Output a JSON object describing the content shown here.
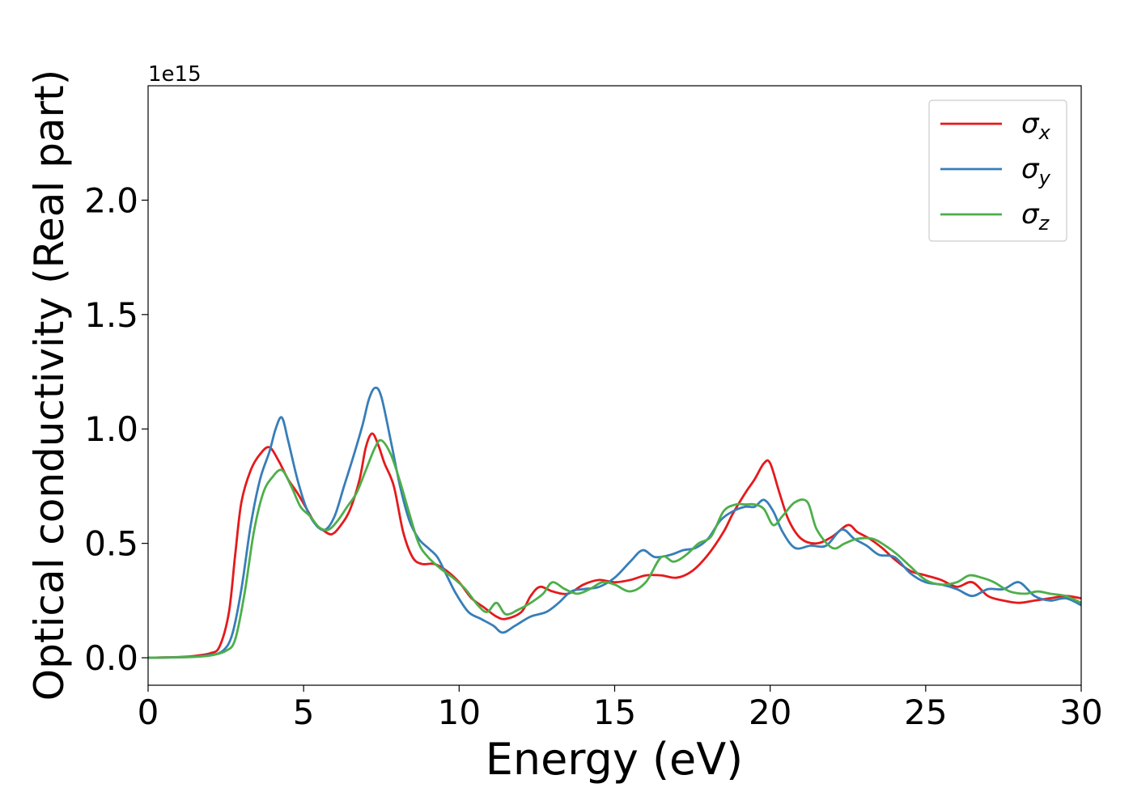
{
  "chart_data": {
    "type": "line",
    "xlabel": "Energy (eV)",
    "ylabel": "Optical conductivity (Real part)",
    "offset_label": "1e15",
    "xlim": [
      0,
      30
    ],
    "ylim": [
      -0.12,
      2.5
    ],
    "xticks": [
      0,
      5,
      10,
      15,
      20,
      25,
      30
    ],
    "yticks": [
      0.0,
      0.5,
      1.0,
      1.5,
      2.0
    ],
    "xtick_labels": [
      "0",
      "5",
      "10",
      "15",
      "20",
      "25",
      "30"
    ],
    "ytick_labels": [
      "0.0",
      "0.5",
      "1.0",
      "1.5",
      "2.0"
    ],
    "grid": false,
    "legend_position": "top-right",
    "series": [
      {
        "name": "σx",
        "color": "#e41a1c",
        "points": [
          [
            0,
            0
          ],
          [
            1,
            0.003
          ],
          [
            1.5,
            0.008
          ],
          [
            2,
            0.02
          ],
          [
            2.3,
            0.05
          ],
          [
            2.6,
            0.2
          ],
          [
            2.8,
            0.45
          ],
          [
            3,
            0.68
          ],
          [
            3.3,
            0.82
          ],
          [
            3.6,
            0.89
          ],
          [
            3.9,
            0.92
          ],
          [
            4.2,
            0.86
          ],
          [
            4.5,
            0.78
          ],
          [
            4.8,
            0.72
          ],
          [
            5.1,
            0.65
          ],
          [
            5.4,
            0.58
          ],
          [
            5.6,
            0.56
          ],
          [
            5.9,
            0.54
          ],
          [
            6.2,
            0.58
          ],
          [
            6.5,
            0.65
          ],
          [
            6.8,
            0.78
          ],
          [
            7.0,
            0.92
          ],
          [
            7.2,
            0.98
          ],
          [
            7.4,
            0.93
          ],
          [
            7.6,
            0.85
          ],
          [
            7.9,
            0.75
          ],
          [
            8.2,
            0.55
          ],
          [
            8.5,
            0.44
          ],
          [
            8.8,
            0.41
          ],
          [
            9.2,
            0.41
          ],
          [
            9.6,
            0.38
          ],
          [
            10,
            0.33
          ],
          [
            10.4,
            0.26
          ],
          [
            10.8,
            0.22
          ],
          [
            11.2,
            0.18
          ],
          [
            11.5,
            0.17
          ],
          [
            12,
            0.2
          ],
          [
            12.3,
            0.27
          ],
          [
            12.6,
            0.31
          ],
          [
            13,
            0.29
          ],
          [
            13.5,
            0.28
          ],
          [
            14,
            0.32
          ],
          [
            14.5,
            0.34
          ],
          [
            15,
            0.33
          ],
          [
            15.5,
            0.34
          ],
          [
            16,
            0.36
          ],
          [
            16.5,
            0.36
          ],
          [
            17,
            0.35
          ],
          [
            17.5,
            0.38
          ],
          [
            18,
            0.45
          ],
          [
            18.5,
            0.55
          ],
          [
            18.8,
            0.63
          ],
          [
            19.2,
            0.72
          ],
          [
            19.5,
            0.78
          ],
          [
            19.8,
            0.85
          ],
          [
            20,
            0.85
          ],
          [
            20.3,
            0.72
          ],
          [
            20.6,
            0.6
          ],
          [
            21,
            0.52
          ],
          [
            21.5,
            0.5
          ],
          [
            22,
            0.53
          ],
          [
            22.5,
            0.58
          ],
          [
            22.8,
            0.55
          ],
          [
            23.2,
            0.52
          ],
          [
            23.6,
            0.48
          ],
          [
            24,
            0.43
          ],
          [
            24.5,
            0.38
          ],
          [
            25,
            0.36
          ],
          [
            25.5,
            0.34
          ],
          [
            26,
            0.31
          ],
          [
            26.5,
            0.33
          ],
          [
            27,
            0.27
          ],
          [
            27.5,
            0.25
          ],
          [
            28,
            0.24
          ],
          [
            28.5,
            0.25
          ],
          [
            29,
            0.26
          ],
          [
            29.5,
            0.27
          ],
          [
            30,
            0.26
          ]
        ]
      },
      {
        "name": "σy",
        "color": "#377eb8",
        "points": [
          [
            0,
            0
          ],
          [
            1,
            0.002
          ],
          [
            1.5,
            0.005
          ],
          [
            2,
            0.012
          ],
          [
            2.4,
            0.03
          ],
          [
            2.7,
            0.1
          ],
          [
            3,
            0.3
          ],
          [
            3.3,
            0.58
          ],
          [
            3.6,
            0.78
          ],
          [
            3.9,
            0.9
          ],
          [
            4.1,
            1.0
          ],
          [
            4.3,
            1.05
          ],
          [
            4.5,
            0.95
          ],
          [
            4.8,
            0.78
          ],
          [
            5.1,
            0.65
          ],
          [
            5.4,
            0.58
          ],
          [
            5.7,
            0.56
          ],
          [
            6,
            0.62
          ],
          [
            6.3,
            0.75
          ],
          [
            6.6,
            0.88
          ],
          [
            6.9,
            1.02
          ],
          [
            7.1,
            1.13
          ],
          [
            7.3,
            1.18
          ],
          [
            7.5,
            1.14
          ],
          [
            7.8,
            0.95
          ],
          [
            8.1,
            0.75
          ],
          [
            8.4,
            0.6
          ],
          [
            8.7,
            0.52
          ],
          [
            9,
            0.48
          ],
          [
            9.3,
            0.44
          ],
          [
            9.6,
            0.36
          ],
          [
            9.9,
            0.28
          ],
          [
            10.3,
            0.2
          ],
          [
            10.7,
            0.17
          ],
          [
            11.1,
            0.14
          ],
          [
            11.4,
            0.11
          ],
          [
            11.8,
            0.14
          ],
          [
            12.3,
            0.18
          ],
          [
            12.8,
            0.2
          ],
          [
            13.2,
            0.24
          ],
          [
            13.6,
            0.29
          ],
          [
            14,
            0.3
          ],
          [
            14.5,
            0.31
          ],
          [
            15,
            0.35
          ],
          [
            15.5,
            0.42
          ],
          [
            15.9,
            0.47
          ],
          [
            16.3,
            0.44
          ],
          [
            16.8,
            0.45
          ],
          [
            17.2,
            0.47
          ],
          [
            17.6,
            0.48
          ],
          [
            18,
            0.52
          ],
          [
            18.4,
            0.6
          ],
          [
            18.8,
            0.64
          ],
          [
            19.2,
            0.66
          ],
          [
            19.5,
            0.66
          ],
          [
            19.8,
            0.69
          ],
          [
            20.1,
            0.64
          ],
          [
            20.4,
            0.55
          ],
          [
            20.8,
            0.48
          ],
          [
            21.3,
            0.49
          ],
          [
            21.8,
            0.49
          ],
          [
            22.3,
            0.56
          ],
          [
            22.7,
            0.52
          ],
          [
            23.1,
            0.49
          ],
          [
            23.5,
            0.45
          ],
          [
            24,
            0.44
          ],
          [
            24.5,
            0.37
          ],
          [
            25,
            0.33
          ],
          [
            25.5,
            0.32
          ],
          [
            26,
            0.3
          ],
          [
            26.5,
            0.27
          ],
          [
            27,
            0.3
          ],
          [
            27.5,
            0.3
          ],
          [
            28,
            0.33
          ],
          [
            28.5,
            0.27
          ],
          [
            29,
            0.25
          ],
          [
            29.5,
            0.26
          ],
          [
            30,
            0.23
          ]
        ]
      },
      {
        "name": "σz",
        "color": "#4daf4a",
        "points": [
          [
            0,
            0
          ],
          [
            1,
            0.002
          ],
          [
            1.5,
            0.004
          ],
          [
            2,
            0.01
          ],
          [
            2.5,
            0.03
          ],
          [
            2.8,
            0.08
          ],
          [
            3.1,
            0.28
          ],
          [
            3.4,
            0.55
          ],
          [
            3.7,
            0.72
          ],
          [
            4,
            0.79
          ],
          [
            4.3,
            0.82
          ],
          [
            4.6,
            0.75
          ],
          [
            4.9,
            0.66
          ],
          [
            5.2,
            0.62
          ],
          [
            5.5,
            0.57
          ],
          [
            5.8,
            0.56
          ],
          [
            6.1,
            0.6
          ],
          [
            6.4,
            0.66
          ],
          [
            6.7,
            0.72
          ],
          [
            7.0,
            0.82
          ],
          [
            7.3,
            0.92
          ],
          [
            7.5,
            0.95
          ],
          [
            7.8,
            0.89
          ],
          [
            8.1,
            0.77
          ],
          [
            8.4,
            0.63
          ],
          [
            8.7,
            0.5
          ],
          [
            9,
            0.44
          ],
          [
            9.4,
            0.39
          ],
          [
            9.8,
            0.35
          ],
          [
            10.2,
            0.3
          ],
          [
            10.6,
            0.23
          ],
          [
            10.9,
            0.2
          ],
          [
            11.2,
            0.24
          ],
          [
            11.5,
            0.19
          ],
          [
            11.9,
            0.21
          ],
          [
            12.3,
            0.24
          ],
          [
            12.7,
            0.28
          ],
          [
            13,
            0.33
          ],
          [
            13.4,
            0.3
          ],
          [
            13.8,
            0.28
          ],
          [
            14.2,
            0.3
          ],
          [
            14.6,
            0.33
          ],
          [
            15,
            0.32
          ],
          [
            15.5,
            0.29
          ],
          [
            16,
            0.33
          ],
          [
            16.5,
            0.44
          ],
          [
            16.9,
            0.42
          ],
          [
            17.3,
            0.45
          ],
          [
            17.7,
            0.5
          ],
          [
            18.1,
            0.53
          ],
          [
            18.5,
            0.64
          ],
          [
            18.9,
            0.67
          ],
          [
            19.2,
            0.67
          ],
          [
            19.5,
            0.67
          ],
          [
            19.8,
            0.65
          ],
          [
            20.1,
            0.58
          ],
          [
            20.4,
            0.62
          ],
          [
            20.8,
            0.68
          ],
          [
            21.2,
            0.68
          ],
          [
            21.5,
            0.56
          ],
          [
            22,
            0.48
          ],
          [
            22.4,
            0.5
          ],
          [
            22.8,
            0.52
          ],
          [
            23.3,
            0.52
          ],
          [
            23.7,
            0.49
          ],
          [
            24.1,
            0.45
          ],
          [
            24.5,
            0.4
          ],
          [
            25,
            0.34
          ],
          [
            25.5,
            0.32
          ],
          [
            26,
            0.33
          ],
          [
            26.4,
            0.36
          ],
          [
            26.8,
            0.35
          ],
          [
            27.2,
            0.33
          ],
          [
            27.7,
            0.29
          ],
          [
            28.2,
            0.28
          ],
          [
            28.6,
            0.29
          ],
          [
            29,
            0.28
          ],
          [
            29.5,
            0.27
          ],
          [
            30,
            0.24
          ]
        ]
      }
    ]
  }
}
